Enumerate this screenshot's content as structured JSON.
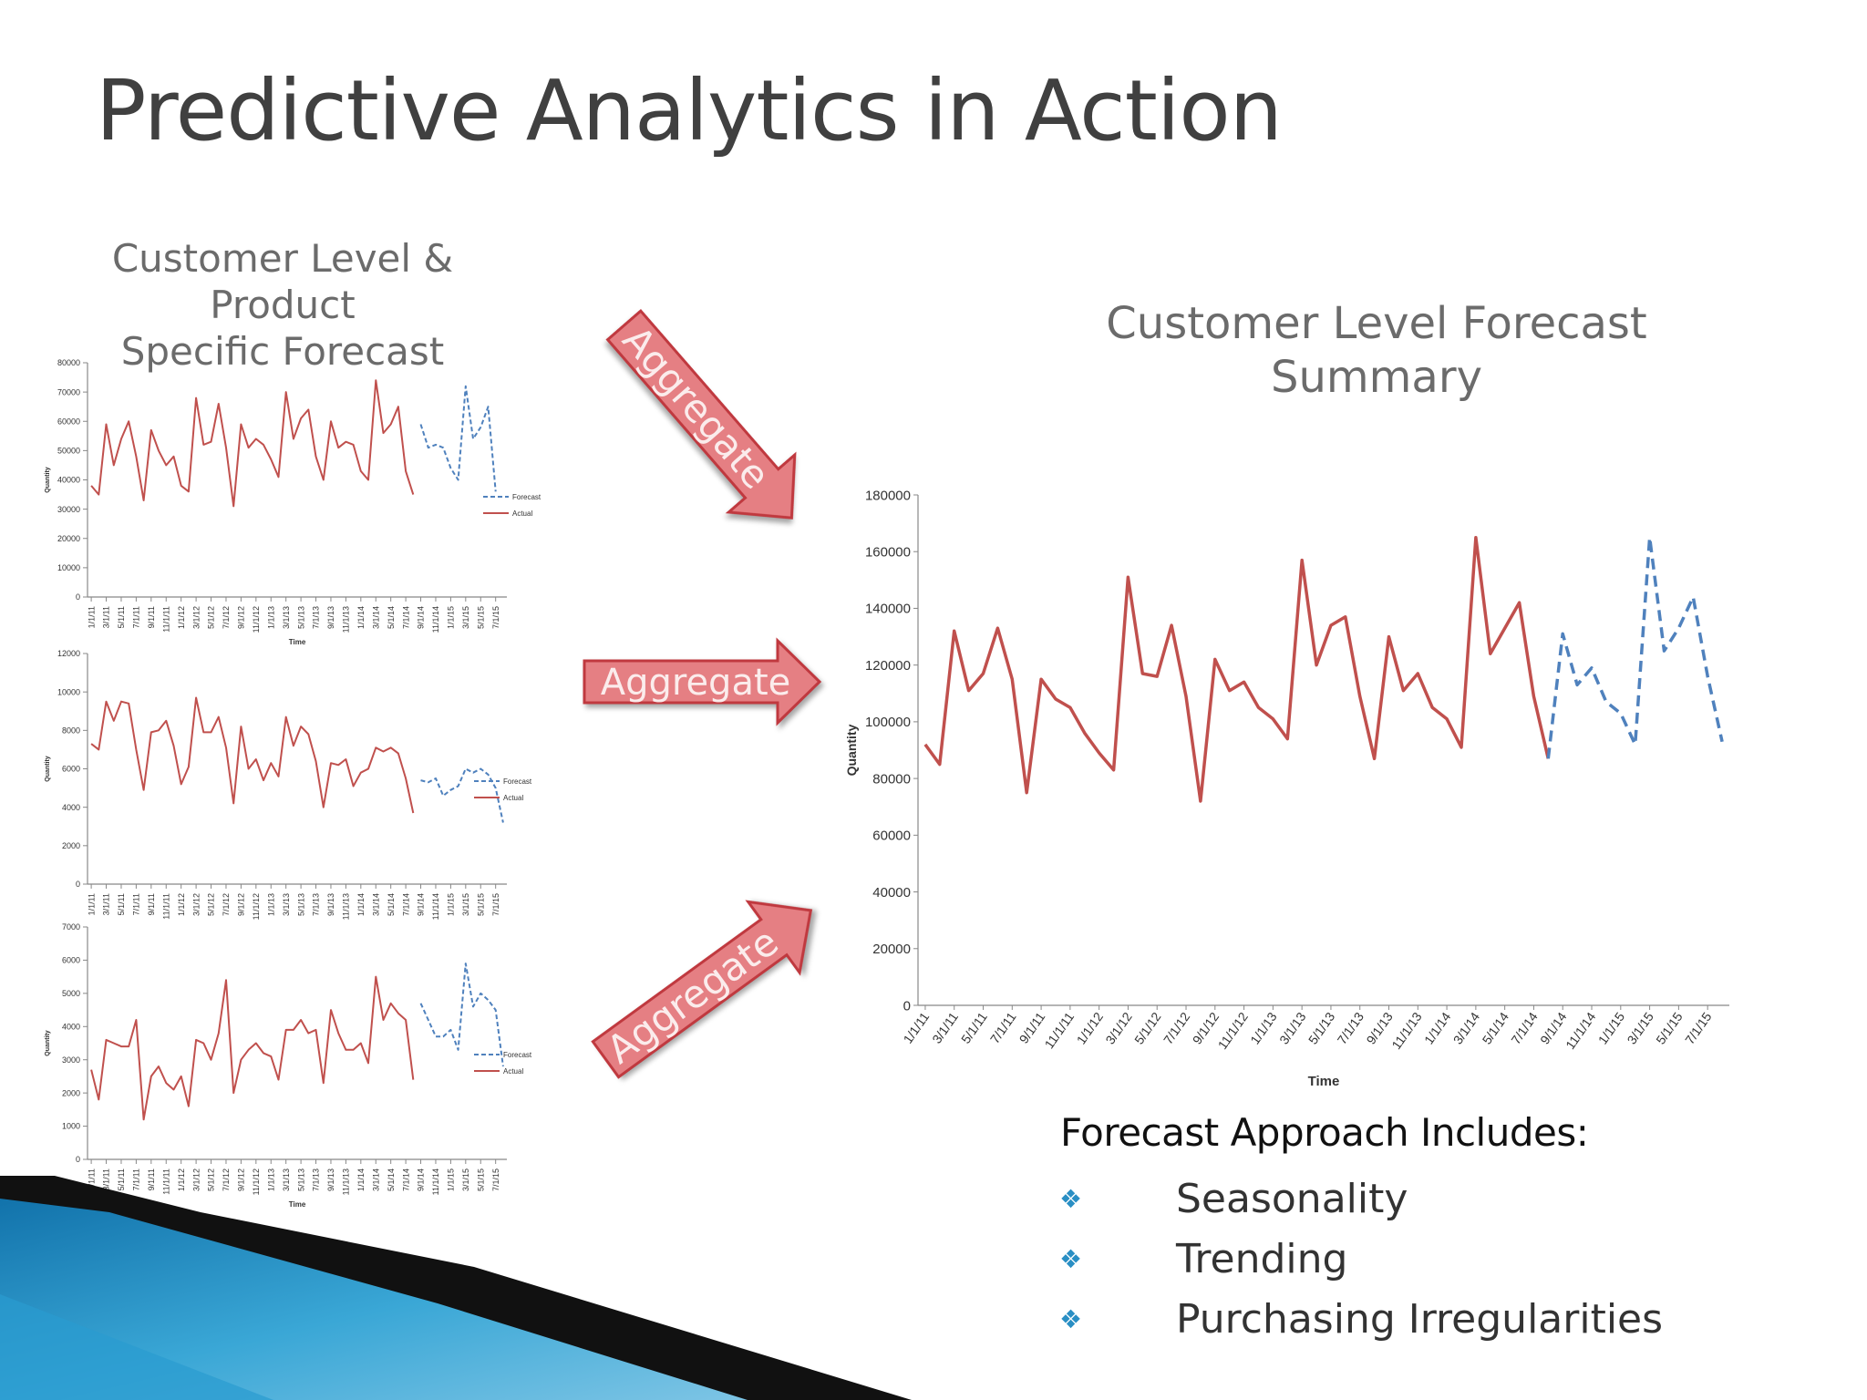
{
  "slide": {
    "title": "Predictive Analytics in Action",
    "left_subtitle": [
      "Customer Level & Product",
      "Specific Forecast"
    ],
    "right_subtitle": [
      "Customer Level Forecast",
      "Summary"
    ],
    "arrow_label": "Aggregate",
    "approach_title": "Forecast Approach Includes:",
    "approach_items": [
      "Seasonality",
      "Trending",
      "Purchasing Irregularities"
    ],
    "bullet_icon": "diamond-cluster-icon",
    "colors": {
      "actual": "#c0504d",
      "forecast": "#4f81bd",
      "arrow_fill": "#e57f83",
      "bullet": "#2a8fc4",
      "band": "#1f8fc3"
    }
  },
  "chart_data": [
    {
      "type": "line",
      "id": "product-1",
      "xlabel": "Time",
      "ylabel": "Quantity",
      "ylim": [
        0,
        80000
      ],
      "yticks": [
        0,
        10000,
        20000,
        30000,
        40000,
        50000,
        60000,
        70000,
        80000
      ],
      "x_tick_labels": [
        "1/1/11",
        "3/1/11",
        "5/1/11",
        "7/1/11",
        "9/1/11",
        "11/1/11",
        "1/1/12",
        "3/1/12",
        "5/1/12",
        "7/1/12",
        "9/1/12",
        "11/1/12",
        "1/1/13",
        "3/1/13",
        "5/1/13",
        "7/1/13",
        "9/1/13",
        "11/1/13",
        "1/1/14",
        "3/1/14",
        "5/1/14",
        "7/1/14",
        "9/1/14",
        "11/1/14",
        "1/1/15",
        "3/1/15",
        "5/1/15",
        "7/1/15"
      ],
      "legend_position": "right",
      "series": [
        {
          "name": "Forecast",
          "dashed": true,
          "start_index": 44,
          "values": [
            59000,
            51000,
            52000,
            51000,
            44000,
            40000,
            72000,
            54000,
            58000,
            65000,
            36000
          ]
        },
        {
          "name": "Actual",
          "dashed": false,
          "start_index": 0,
          "values": [
            38000,
            35000,
            59000,
            45000,
            54000,
            60000,
            48000,
            33000,
            57000,
            50000,
            45000,
            48000,
            38000,
            36000,
            68000,
            52000,
            53000,
            66000,
            51000,
            31000,
            59000,
            51000,
            54000,
            52000,
            47000,
            41000,
            70000,
            54000,
            61000,
            64000,
            48000,
            40000,
            60000,
            51000,
            53000,
            52000,
            43000,
            40000,
            74000,
            56000,
            59000,
            65000,
            43000,
            35000
          ]
        }
      ]
    },
    {
      "type": "line",
      "id": "product-2",
      "xlabel": "",
      "ylabel": "Quantity",
      "ylim": [
        0,
        12000
      ],
      "yticks": [
        0,
        2000,
        4000,
        6000,
        8000,
        10000,
        12000
      ],
      "x_tick_labels": [
        "1/1/11",
        "3/1/11",
        "5/1/11",
        "7/1/11",
        "9/1/11",
        "11/1/11",
        "1/1/12",
        "3/1/12",
        "5/1/12",
        "7/1/12",
        "9/1/12",
        "11/1/12",
        "1/1/13",
        "3/1/13",
        "5/1/13",
        "7/1/13",
        "9/1/13",
        "11/1/13",
        "1/1/14",
        "3/1/14",
        "5/1/14",
        "7/1/14",
        "9/1/14",
        "11/1/14",
        "1/1/15",
        "3/1/15",
        "5/1/15",
        "7/1/15"
      ],
      "legend_position": "right",
      "series": [
        {
          "name": "Forecast",
          "dashed": true,
          "start_index": 44,
          "values": [
            5400,
            5300,
            5500,
            4600,
            4900,
            5100,
            6000,
            5800,
            6000,
            5700,
            5000,
            3200
          ]
        },
        {
          "name": "Actual",
          "dashed": false,
          "start_index": 0,
          "values": [
            7300,
            7000,
            9500,
            8500,
            9500,
            9400,
            7000,
            4900,
            7900,
            8000,
            8500,
            7200,
            5200,
            6100,
            9700,
            7900,
            7900,
            8700,
            7100,
            4200,
            8200,
            6000,
            6500,
            5400,
            6300,
            5600,
            8700,
            7200,
            8200,
            7800,
            6400,
            4000,
            6300,
            6200,
            6500,
            5100,
            5800,
            6000,
            7100,
            6900,
            7100,
            6800,
            5500,
            3700
          ]
        }
      ]
    },
    {
      "type": "line",
      "id": "product-3",
      "xlabel": "Time",
      "ylabel": "Quantity",
      "ylim": [
        0,
        7000
      ],
      "yticks": [
        0,
        1000,
        2000,
        3000,
        4000,
        5000,
        6000,
        7000
      ],
      "x_tick_labels": [
        "1/1/11",
        "3/1/11",
        "5/1/11",
        "7/1/11",
        "9/1/11",
        "11/1/11",
        "1/1/12",
        "3/1/12",
        "5/1/12",
        "7/1/12",
        "9/1/12",
        "11/1/12",
        "1/1/13",
        "3/1/13",
        "5/1/13",
        "7/1/13",
        "9/1/13",
        "11/1/13",
        "1/1/14",
        "3/1/14",
        "5/1/14",
        "7/1/14",
        "9/1/14",
        "11/1/14",
        "1/1/15",
        "3/1/15",
        "5/1/15",
        "7/1/15"
      ],
      "legend_position": "right",
      "series": [
        {
          "name": "Forecast",
          "dashed": true,
          "start_index": 44,
          "values": [
            4700,
            4200,
            3700,
            3700,
            3900,
            3300,
            5900,
            4600,
            5000,
            4800,
            4500,
            2800
          ]
        },
        {
          "name": "Actual",
          "dashed": false,
          "start_index": 0,
          "values": [
            2700,
            1800,
            3600,
            3500,
            3400,
            3400,
            4200,
            1200,
            2500,
            2800,
            2300,
            2100,
            2500,
            1600,
            3600,
            3500,
            3000,
            3800,
            5400,
            2000,
            3000,
            3300,
            3500,
            3200,
            3100,
            2400,
            3900,
            3900,
            4200,
            3800,
            3900,
            2300,
            4500,
            3800,
            3300,
            3300,
            3500,
            2900,
            5500,
            4200,
            4700,
            4400,
            4200,
            2400
          ]
        }
      ]
    },
    {
      "type": "line",
      "id": "customer-summary",
      "xlabel": "Time",
      "ylabel": "Quantity",
      "ylim": [
        0,
        180000
      ],
      "yticks": [
        0,
        20000,
        40000,
        60000,
        80000,
        100000,
        120000,
        140000,
        160000,
        180000
      ],
      "x_tick_labels": [
        "1/1/11",
        "3/1/11",
        "5/1/11",
        "7/1/11",
        "9/1/11",
        "11/1/11",
        "1/1/12",
        "3/1/12",
        "5/1/12",
        "7/1/12",
        "9/1/12",
        "11/1/12",
        "1/1/13",
        "3/1/13",
        "5/1/13",
        "7/1/13",
        "9/1/13",
        "11/1/13",
        "1/1/14",
        "3/1/14",
        "5/1/14",
        "7/1/14",
        "9/1/14",
        "11/1/14",
        "1/1/15",
        "3/1/15",
        "5/1/15",
        "7/1/15"
      ],
      "legend_position": "none",
      "series": [
        {
          "name": "",
          "dashed": false,
          "start_index": 0,
          "values": [
            92000,
            85000,
            132000,
            111000,
            117000,
            133000,
            115000,
            75000,
            115000,
            108000,
            105000,
            96000,
            89000,
            83000,
            151000,
            117000,
            116000,
            134000,
            109000,
            72000,
            122000,
            111000,
            114000,
            105000,
            101000,
            94000,
            157000,
            120000,
            134000,
            137000,
            109000,
            87000,
            130000,
            111000,
            117000,
            105000,
            101000,
            91000,
            165000,
            124000,
            133000,
            142000,
            109000,
            87000
          ]
        },
        {
          "name": "",
          "dashed": true,
          "start_index": 43,
          "values": [
            87000,
            131000,
            113000,
            119000,
            107000,
            103000,
            92000,
            165000,
            125000,
            133000,
            144000,
            116000,
            93000
          ]
        }
      ]
    }
  ]
}
